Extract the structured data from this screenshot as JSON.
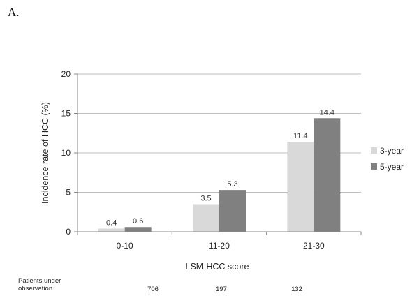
{
  "panel_label": "A.",
  "observation": {
    "label_line1": "Patients under",
    "label_line2": "observation",
    "counts": [
      "706",
      "197",
      "132"
    ]
  },
  "chart_data": {
    "type": "bar",
    "categories": [
      "0-10",
      "11-20",
      "21-30"
    ],
    "series": [
      {
        "name": "3-year",
        "values": [
          0.4,
          3.5,
          11.4
        ],
        "labels": [
          "0.4",
          "3.5",
          "11.4"
        ],
        "color": "#d9d9d9"
      },
      {
        "name": "5-year",
        "values": [
          0.6,
          5.3,
          14.4
        ],
        "labels": [
          "0.6",
          "5.3",
          "14.4"
        ],
        "color": "#808080"
      }
    ],
    "xlabel": "LSM-HCC score",
    "ylabel": "Incidence rate of HCC (%)",
    "ylim": [
      0,
      20
    ],
    "yticks": [
      0,
      5,
      10,
      15,
      20
    ],
    "grid": true,
    "legend_position": "right"
  }
}
